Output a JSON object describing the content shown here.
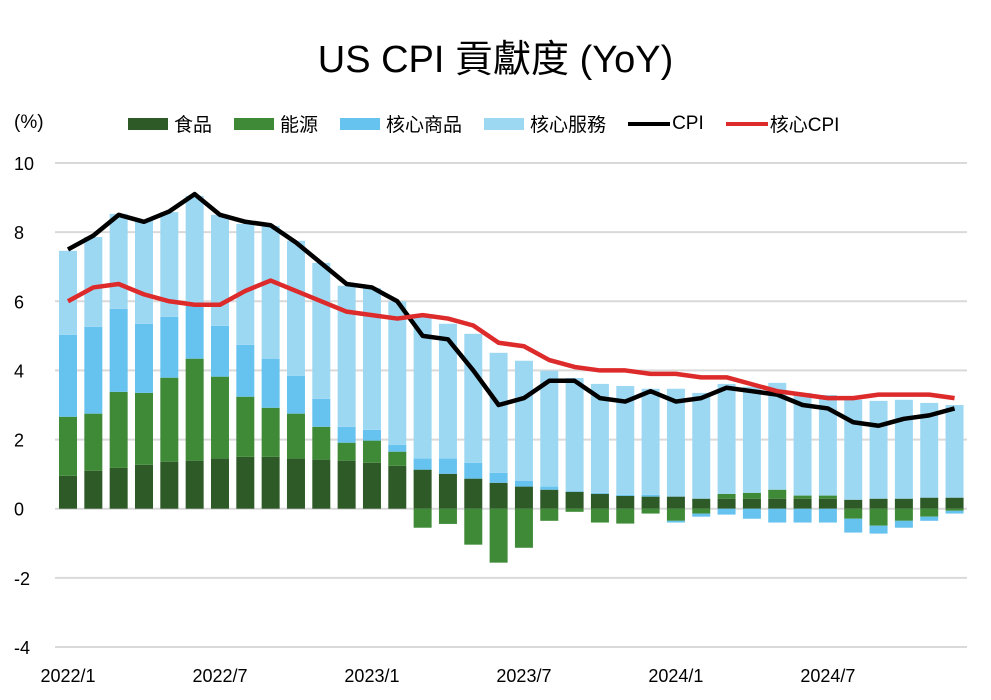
{
  "chart_data": {
    "type": "bar",
    "title": "US CPI 貢獻度 (YoY)",
    "ylabel": "(%)",
    "xlabel": "",
    "ylim": [
      -4,
      10
    ],
    "yticks": [
      10,
      8,
      6,
      4,
      2,
      0,
      -2,
      -4
    ],
    "grid": true,
    "legend_position": "top",
    "x_tick_labels": [
      {
        "index": 0,
        "label": "2022/1"
      },
      {
        "index": 6,
        "label": "2022/7"
      },
      {
        "index": 12,
        "label": "2023/1"
      },
      {
        "index": 18,
        "label": "2023/7"
      },
      {
        "index": 24,
        "label": "2024/1"
      },
      {
        "index": 30,
        "label": "2024/7"
      }
    ],
    "categories": [
      "2022/1",
      "2022/2",
      "2022/3",
      "2022/4",
      "2022/5",
      "2022/6",
      "2022/7",
      "2022/8",
      "2022/9",
      "2022/10",
      "2022/11",
      "2022/12",
      "2023/1",
      "2023/2",
      "2023/3",
      "2023/4",
      "2023/5",
      "2023/6",
      "2023/7",
      "2023/8",
      "2023/9",
      "2023/10",
      "2023/11",
      "2023/12",
      "2024/1",
      "2024/2",
      "2024/3",
      "2024/4",
      "2024/5",
      "2024/6",
      "2024/7",
      "2024/8",
      "2024/9",
      "2024/10",
      "2024/11",
      "2024/12"
    ],
    "series": [
      {
        "name": "食品",
        "kind": "bar",
        "color": "#2d5a27",
        "values": [
          0.95,
          1.1,
          1.18,
          1.27,
          1.36,
          1.39,
          1.45,
          1.5,
          1.5,
          1.45,
          1.42,
          1.39,
          1.33,
          1.24,
          1.13,
          1.01,
          0.87,
          0.75,
          0.64,
          0.55,
          0.49,
          0.43,
          0.37,
          0.35,
          0.35,
          0.29,
          0.29,
          0.29,
          0.29,
          0.29,
          0.29,
          0.26,
          0.29,
          0.29,
          0.32,
          0.32
        ]
      },
      {
        "name": "能源",
        "kind": "bar",
        "color": "#3f8a37",
        "values": [
          1.71,
          1.65,
          2.2,
          2.08,
          2.43,
          2.95,
          2.37,
          1.74,
          1.42,
          1.3,
          0.95,
          0.52,
          0.64,
          0.41,
          -0.55,
          -0.44,
          -1.04,
          -1.56,
          -1.13,
          -0.35,
          -0.09,
          -0.4,
          -0.43,
          -0.14,
          -0.35,
          -0.14,
          0.14,
          0.17,
          0.26,
          0.09,
          0.09,
          -0.29,
          -0.49,
          -0.35,
          -0.23,
          -0.06
        ]
      },
      {
        "name": "核心商品",
        "kind": "bar",
        "color": "#66c2ee",
        "values": [
          2.37,
          2.51,
          2.4,
          2.0,
          1.76,
          1.53,
          1.47,
          1.5,
          1.42,
          1.09,
          0.81,
          0.46,
          0.31,
          0.2,
          0.32,
          0.44,
          0.46,
          0.29,
          0.17,
          0.09,
          0.02,
          0.03,
          0.03,
          0.05,
          -0.05,
          -0.09,
          -0.17,
          -0.29,
          -0.4,
          -0.4,
          -0.4,
          -0.4,
          -0.23,
          -0.2,
          -0.12,
          -0.08
        ]
      },
      {
        "name": "核心服務",
        "kind": "bar",
        "color": "#9dd8f3",
        "values": [
          2.43,
          2.6,
          2.75,
          3.0,
          3.03,
          3.18,
          3.21,
          3.5,
          3.84,
          3.91,
          3.93,
          4.08,
          4.1,
          4.15,
          4.15,
          3.9,
          3.73,
          3.47,
          3.47,
          3.35,
          3.27,
          3.15,
          3.15,
          3.07,
          3.12,
          3.06,
          3.18,
          3.07,
          3.09,
          2.97,
          2.91,
          2.89,
          2.83,
          2.86,
          2.74,
          2.68
        ]
      },
      {
        "name": "CPI",
        "kind": "line",
        "color": "#000000",
        "values": [
          7.5,
          7.9,
          8.5,
          8.3,
          8.6,
          9.1,
          8.5,
          8.3,
          8.2,
          7.7,
          7.1,
          6.5,
          6.4,
          6.0,
          5.0,
          4.9,
          4.0,
          3.0,
          3.2,
          3.7,
          3.7,
          3.2,
          3.1,
          3.4,
          3.1,
          3.2,
          3.5,
          3.4,
          3.3,
          3.0,
          2.9,
          2.5,
          2.4,
          2.6,
          2.7,
          2.9
        ]
      },
      {
        "name": "核心CPI",
        "kind": "line",
        "color": "#dd2a2a",
        "values": [
          6.0,
          6.4,
          6.5,
          6.2,
          6.0,
          5.9,
          5.9,
          6.3,
          6.6,
          6.3,
          6.0,
          5.7,
          5.6,
          5.5,
          5.6,
          5.5,
          5.3,
          4.8,
          4.7,
          4.3,
          4.1,
          4.0,
          4.0,
          3.9,
          3.9,
          3.8,
          3.8,
          3.6,
          3.4,
          3.3,
          3.2,
          3.2,
          3.3,
          3.3,
          3.3,
          3.2
        ]
      }
    ]
  }
}
